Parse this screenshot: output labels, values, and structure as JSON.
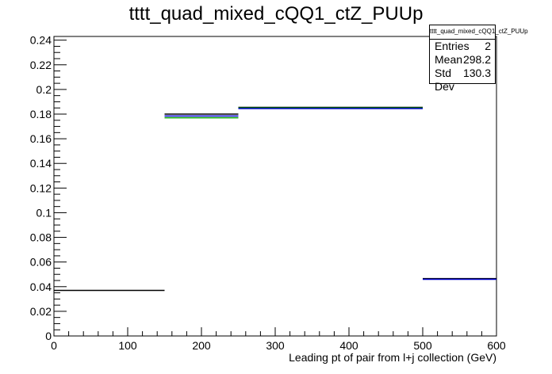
{
  "chart_data": {
    "type": "histogram",
    "title": "tttt_quad_mixed_cQQ1_ctZ_PUUp",
    "xlabel": "Leading pt of pair from l+j collection (GeV)",
    "ylabel": "",
    "xlim": [
      0,
      600
    ],
    "ylim": [
      0,
      0.243
    ],
    "x_ticks": [
      0,
      100,
      200,
      300,
      400,
      500,
      600
    ],
    "y_ticks": [
      0,
      0.02,
      0.04,
      0.06,
      0.08,
      0.1,
      0.12,
      0.14,
      0.16,
      0.18,
      0.2,
      0.22,
      0.24
    ],
    "series": [
      {
        "color": "#000000",
        "bins": [
          {
            "x0": 0,
            "x1": 150,
            "value": 0.037
          },
          {
            "x0": 150,
            "x1": 250,
            "value": 0.18
          },
          {
            "x0": 250,
            "x1": 500,
            "value": 0.1855
          },
          {
            "x0": 500,
            "x1": 600,
            "value": 0.0465
          }
        ]
      },
      {
        "color": "#00a000",
        "bins": [
          {
            "x0": 150,
            "x1": 250,
            "value": 0.177
          },
          {
            "x0": 250,
            "x1": 500,
            "value": 0.185
          }
        ]
      },
      {
        "color": "#0000cc",
        "bins": [
          {
            "x0": 150,
            "x1": 250,
            "value": 0.1785
          },
          {
            "x0": 250,
            "x1": 500,
            "value": 0.1845
          },
          {
            "x0": 500,
            "x1": 600,
            "value": 0.046
          }
        ]
      }
    ],
    "stats_box": {
      "title": "tttt_quad_mixed_cQQ1_ctZ_PUUp",
      "rows": [
        {
          "label": "Entries",
          "value": "2"
        },
        {
          "label": "Mean",
          "value": "298.2"
        },
        {
          "label": "Std Dev",
          "value": "130.3"
        }
      ]
    }
  }
}
